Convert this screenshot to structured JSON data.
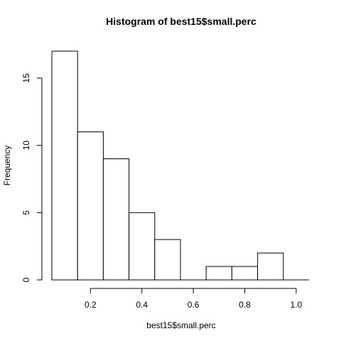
{
  "chart_data": {
    "type": "bar",
    "title": "Histogram of best15$small.perc",
    "xlabel": "best15$small.perc",
    "ylabel": "Frequency",
    "bins": [
      {
        "start": 0.05,
        "end": 0.15,
        "count": 17
      },
      {
        "start": 0.15,
        "end": 0.25,
        "count": 11
      },
      {
        "start": 0.25,
        "end": 0.35,
        "count": 9
      },
      {
        "start": 0.35,
        "end": 0.45,
        "count": 5
      },
      {
        "start": 0.45,
        "end": 0.55,
        "count": 3
      },
      {
        "start": 0.55,
        "end": 0.65,
        "count": 0
      },
      {
        "start": 0.65,
        "end": 0.75,
        "count": 1
      },
      {
        "start": 0.75,
        "end": 0.85,
        "count": 1
      },
      {
        "start": 0.85,
        "end": 0.95,
        "count": 2
      },
      {
        "start": 0.95,
        "end": 1.05,
        "count": 0
      }
    ],
    "xticks": [
      0.2,
      0.4,
      0.6,
      0.8,
      1.0
    ],
    "xtick_labels": [
      "0.2",
      "0.4",
      "0.6",
      "0.8",
      "1.0"
    ],
    "yticks": [
      0,
      5,
      10,
      15
    ],
    "ytick_labels": [
      "0",
      "5",
      "10",
      "15"
    ],
    "xlim": [
      0.05,
      1.05
    ],
    "ylim": [
      0,
      17
    ],
    "grid": false,
    "bar_fill": "#ffffff",
    "bar_stroke": "#000000"
  }
}
